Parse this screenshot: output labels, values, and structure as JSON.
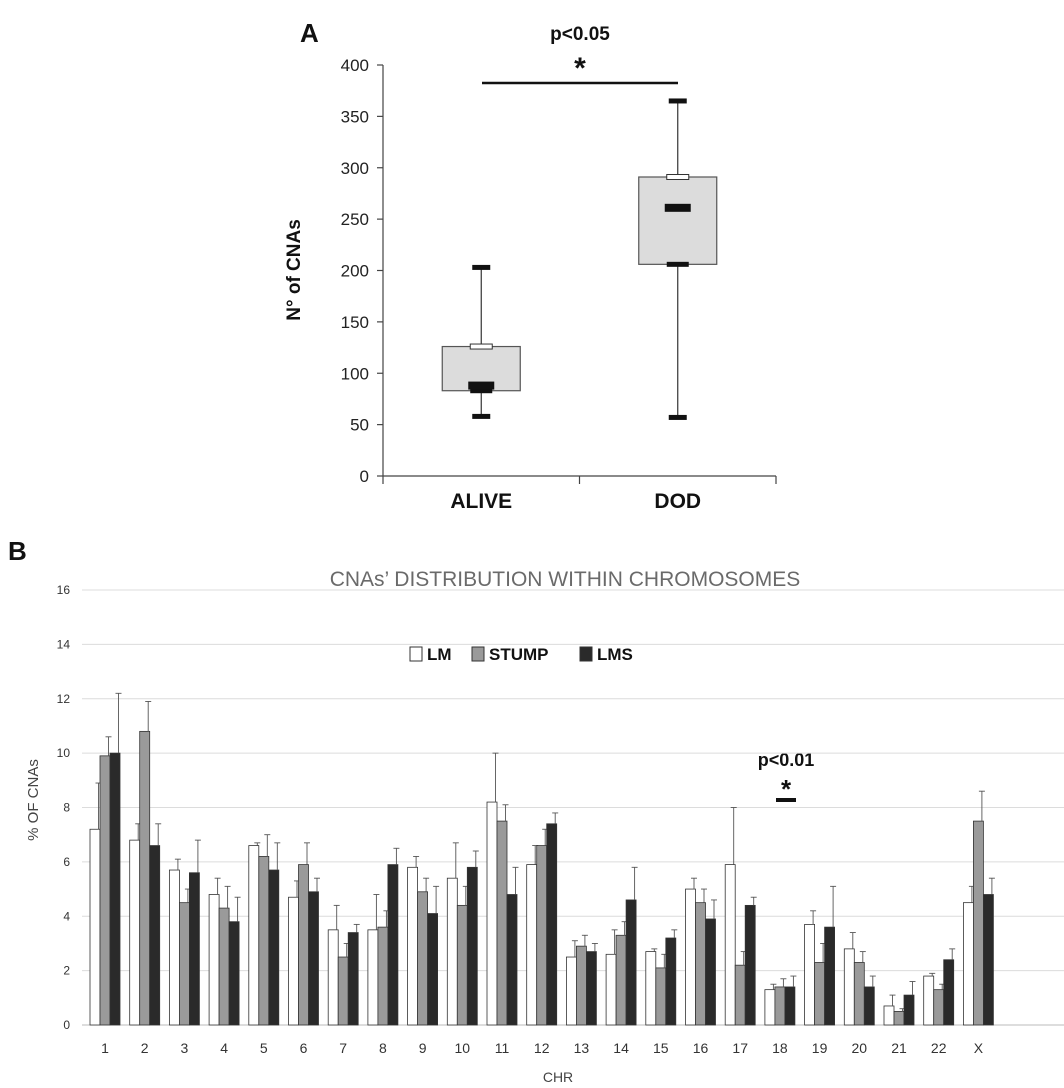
{
  "panel_a": {
    "label": "A",
    "sig_text": "p<0.05",
    "sig_star": "*",
    "ylabel": "N° of CNAs"
  },
  "panel_b": {
    "label": "B",
    "sig_text": "p<0.01",
    "sig_star": "*",
    "legend_order": [
      "LM",
      "STUMP",
      "LMS"
    ]
  },
  "chart_data": [
    {
      "type": "box",
      "title": "",
      "xlabel": "",
      "ylabel": "N° of CNAs",
      "ylim": [
        0,
        400
      ],
      "yticks": [
        0,
        50,
        100,
        150,
        200,
        250,
        300,
        350,
        400
      ],
      "categories": [
        "ALIVE",
        "DOD"
      ],
      "boxes": [
        {
          "name": "ALIVE",
          "min": 58,
          "q1": 83,
          "median": 88,
          "q3": 126,
          "max": 203
        },
        {
          "name": "DOD",
          "min": 57,
          "q1": 206,
          "median": 261,
          "q3": 291,
          "max": 365
        }
      ],
      "annotations": [
        {
          "text": "p<0.05",
          "symbol": "*",
          "between": [
            "ALIVE",
            "DOD"
          ]
        }
      ],
      "grid": false,
      "colors": {
        "box_fill": "#dcdcdc",
        "line": "#222222"
      }
    },
    {
      "type": "bar",
      "title": "CNAs’ DISTRIBUTION WITHIN CHROMOSOMES",
      "xlabel": "CHR",
      "ylabel": "% OF CNAs",
      "ylim": [
        0,
        16
      ],
      "yticks": [
        0,
        2,
        4,
        6,
        8,
        10,
        12,
        14,
        16
      ],
      "grid": true,
      "legend": "top-center",
      "categories": [
        "1",
        "2",
        "3",
        "4",
        "5",
        "6",
        "7",
        "8",
        "9",
        "10",
        "11",
        "12",
        "13",
        "14",
        "15",
        "16",
        "17",
        "18",
        "19",
        "20",
        "21",
        "22",
        "X"
      ],
      "series": [
        {
          "name": "LM",
          "color": "#ffffff",
          "values": [
            7.2,
            6.8,
            5.7,
            4.8,
            6.6,
            4.7,
            3.5,
            3.5,
            5.8,
            5.4,
            8.2,
            5.9,
            2.5,
            2.6,
            2.7,
            5.0,
            5.9,
            1.3,
            3.7,
            2.8,
            0.7,
            1.8,
            4.5
          ],
          "errors": [
            1.7,
            0.6,
            0.4,
            0.6,
            0.1,
            0.6,
            0.9,
            1.3,
            0.4,
            1.3,
            1.8,
            0.7,
            0.6,
            0.9,
            0.1,
            0.4,
            2.1,
            0.2,
            0.5,
            0.6,
            0.4,
            0.1,
            0.6
          ]
        },
        {
          "name": "STUMP",
          "color": "#9a9a9a",
          "values": [
            9.9,
            10.8,
            4.5,
            4.3,
            6.2,
            5.9,
            2.5,
            3.6,
            4.9,
            4.4,
            7.5,
            6.6,
            2.9,
            3.3,
            2.1,
            4.5,
            2.2,
            1.4,
            2.3,
            2.3,
            0.5,
            1.3,
            7.5
          ],
          "errors": [
            0.7,
            1.1,
            0.5,
            0.8,
            0.8,
            0.8,
            0.5,
            0.6,
            0.5,
            0.7,
            0.6,
            0.6,
            0.4,
            0.5,
            0.5,
            0.5,
            0.5,
            0.3,
            0.7,
            0.4,
            0.1,
            0.2,
            1.1
          ]
        },
        {
          "name": "LMS",
          "color": "#2a2a2a",
          "values": [
            10.0,
            6.6,
            5.6,
            3.8,
            5.7,
            4.9,
            3.4,
            5.9,
            4.1,
            5.8,
            4.8,
            7.4,
            2.7,
            4.6,
            3.2,
            3.9,
            4.4,
            1.4,
            3.6,
            1.4,
            1.1,
            2.4,
            4.8
          ],
          "errors": [
            2.2,
            0.8,
            1.2,
            0.9,
            1.0,
            0.5,
            0.3,
            0.6,
            1.0,
            0.6,
            1.0,
            0.4,
            0.3,
            1.2,
            0.3,
            0.7,
            0.3,
            0.4,
            1.5,
            0.4,
            0.5,
            0.4,
            0.6
          ]
        }
      ],
      "annotations": [
        {
          "text": "p<0.01",
          "symbol": "*",
          "category": "17"
        }
      ]
    }
  ]
}
